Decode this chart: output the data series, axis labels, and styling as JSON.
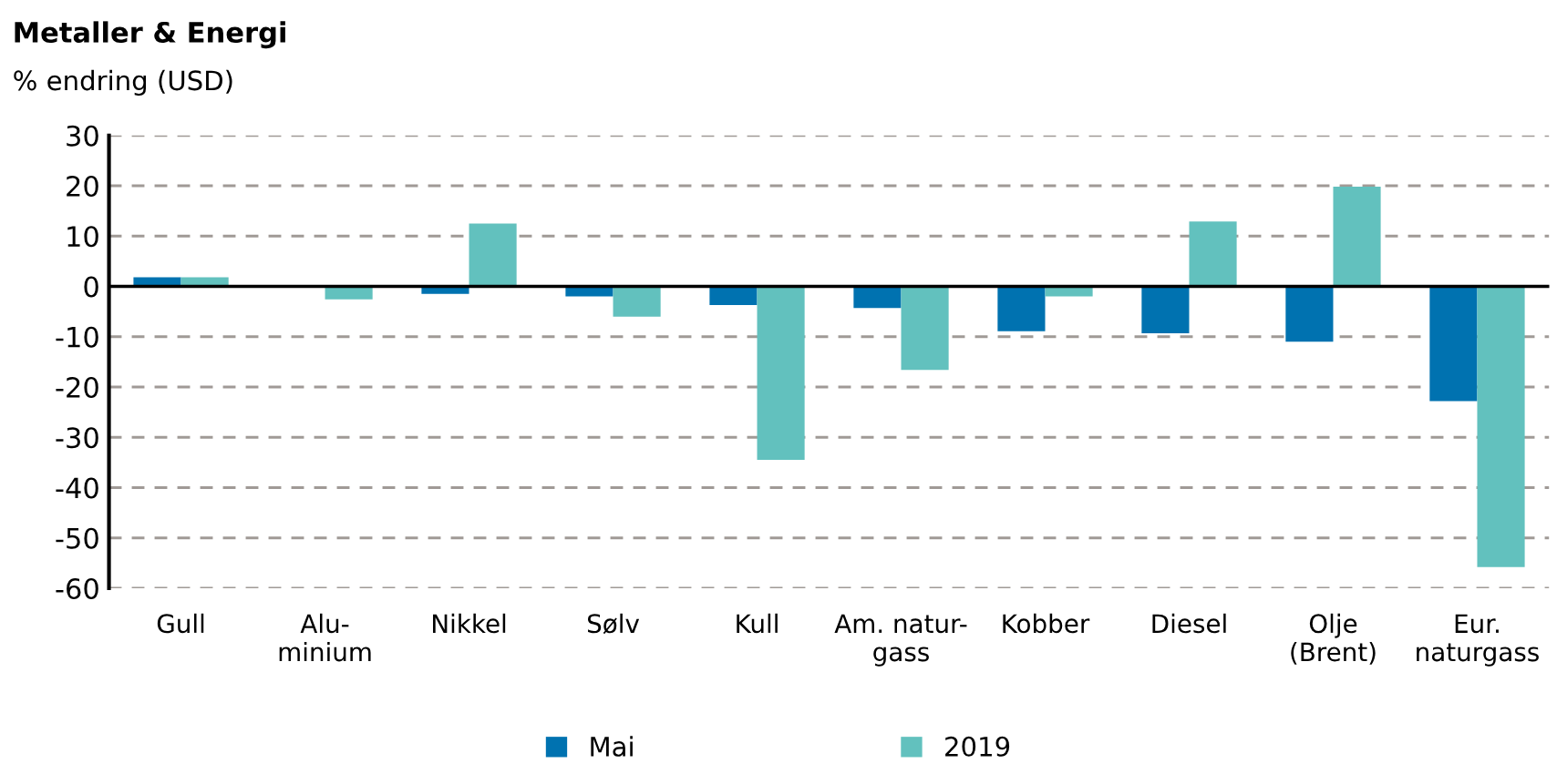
{
  "chart_data": {
    "type": "bar",
    "title": "Metaller & Energi",
    "ylabel": "% endring (USD)",
    "categories": [
      "Gull",
      "Alu-\nminium",
      "Nikkel",
      "Sølv",
      "Kull",
      "Am. natur-\ngass",
      "Kobber",
      "Diesel",
      "Olje\n(Brent)",
      "Eur.\nnaturgass"
    ],
    "series": [
      {
        "name": "Mai",
        "color": "#0072b0",
        "values": [
          1.8,
          null,
          -1.5,
          -2.0,
          -3.7,
          -4.3,
          -8.9,
          -9.3,
          -11.0,
          -22.8
        ]
      },
      {
        "name": "2019",
        "color": "#62c1be",
        "values": [
          1.8,
          -2.6,
          12.5,
          -6.0,
          -34.5,
          -16.6,
          -2.0,
          12.9,
          19.8,
          -55.8
        ]
      }
    ],
    "ylim": [
      -60,
      30
    ],
    "yticks": [
      -60,
      -50,
      -40,
      -30,
      -20,
      -10,
      0,
      10,
      20,
      30
    ],
    "ref_lines": [
      {
        "axis": "y",
        "value": 0,
        "color": "#000000"
      }
    ],
    "grid": "y",
    "legend": "bottom"
  }
}
